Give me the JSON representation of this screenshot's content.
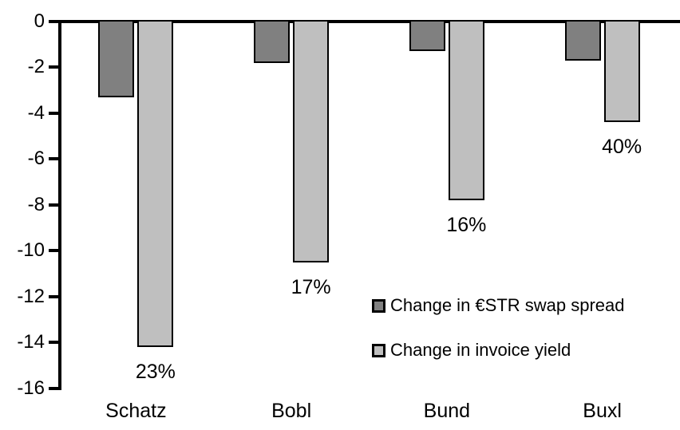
{
  "chart_data": {
    "type": "bar",
    "title": "",
    "xlabel": "",
    "ylabel": "",
    "categories": [
      "Schatz",
      "Bobl",
      "Bund",
      "Buxl"
    ],
    "series": [
      {
        "name": "Change in €STR swap spread",
        "color": "#808080",
        "values": [
          -3.3,
          -1.8,
          -1.3,
          -1.7
        ]
      },
      {
        "name": "Change in invoice yield",
        "color": "#BFBFBF",
        "values": [
          -14.2,
          -10.5,
          -7.8,
          -4.4
        ]
      }
    ],
    "bar_labels": {
      "series": "Change in invoice yield",
      "values": [
        "23%",
        "17%",
        "16%",
        "40%"
      ]
    },
    "yticks": [
      0,
      -2,
      -4,
      -6,
      -8,
      -10,
      -12,
      -14,
      -16
    ],
    "ylim": [
      -16,
      0
    ],
    "grid": false,
    "legend_position": "inside-right",
    "colors": {
      "axis": "#000000",
      "bar_border": "#000000",
      "background": "#FFFFFF",
      "text": "#000000"
    }
  }
}
